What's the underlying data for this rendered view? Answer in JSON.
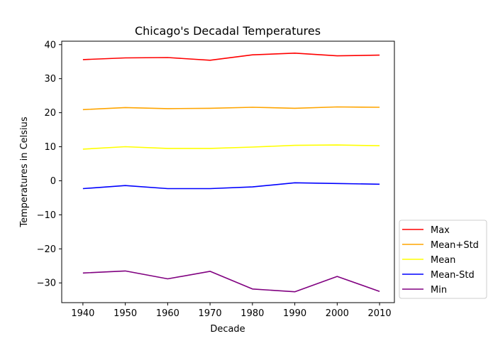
{
  "chart_data": {
    "type": "line",
    "title": "Chicago's Decadal Temperatures",
    "xlabel": "Decade",
    "ylabel": "Temperatures in Celsius",
    "x": [
      1940,
      1950,
      1960,
      1970,
      1980,
      1990,
      2000,
      2010
    ],
    "xlim": [
      1935,
      2013.5
    ],
    "ylim": [
      -35.8,
      41
    ],
    "xticks": [
      1940,
      1950,
      1960,
      1970,
      1980,
      1990,
      2000,
      2010
    ],
    "yticks": [
      -30,
      -20,
      -10,
      0,
      10,
      20,
      30,
      40
    ],
    "ytick_labels": [
      "−30",
      "−20",
      "−10",
      "0",
      "10",
      "20",
      "30",
      "40"
    ],
    "grid": false,
    "legend_position": "outside-lower-right",
    "series": [
      {
        "name": "Max",
        "color": "#ff0000",
        "values": [
          35.6,
          36.1,
          36.2,
          35.4,
          37.0,
          37.5,
          36.7,
          36.9
        ]
      },
      {
        "name": "Mean+Std",
        "color": "#ffa500",
        "values": [
          20.9,
          21.5,
          21.2,
          21.3,
          21.6,
          21.3,
          21.7,
          21.6
        ]
      },
      {
        "name": "Mean",
        "color": "#ffff00",
        "values": [
          9.3,
          10.0,
          9.5,
          9.5,
          9.9,
          10.4,
          10.5,
          10.3
        ]
      },
      {
        "name": "Mean-Std",
        "color": "#0000ff",
        "values": [
          -2.3,
          -1.4,
          -2.3,
          -2.3,
          -1.8,
          -0.6,
          -0.8,
          -1.0
        ]
      },
      {
        "name": "Min",
        "color": "#800080",
        "values": [
          -27.1,
          -26.5,
          -28.8,
          -26.6,
          -31.8,
          -32.6,
          -28.1,
          -32.5
        ]
      }
    ]
  }
}
